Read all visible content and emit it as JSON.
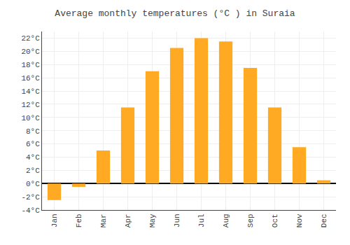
{
  "chart_data": {
    "type": "bar",
    "title": "Average monthly temperatures (°C ) in Suraia",
    "categories": [
      "Jan",
      "Feb",
      "Mar",
      "Apr",
      "May",
      "Jun",
      "Jul",
      "Aug",
      "Sep",
      "Oct",
      "Nov",
      "Dec"
    ],
    "values": [
      -2.5,
      -0.5,
      5.0,
      11.5,
      17.0,
      20.5,
      22.0,
      21.5,
      17.5,
      11.5,
      5.5,
      0.5
    ],
    "color": "#FFAA22",
    "ylim": [
      -4,
      23
    ],
    "yticks": [
      {
        "value": -4,
        "label": "-4°C"
      },
      {
        "value": -2,
        "label": "-2°C"
      },
      {
        "value": 0,
        "label": "0°C"
      },
      {
        "value": 2,
        "label": "2°C"
      },
      {
        "value": 4,
        "label": "4°C"
      },
      {
        "value": 6,
        "label": "6°C"
      },
      {
        "value": 8,
        "label": "8°C"
      },
      {
        "value": 10,
        "label": "10°C"
      },
      {
        "value": 12,
        "label": "12°C"
      },
      {
        "value": 14,
        "label": "14°C"
      },
      {
        "value": 16,
        "label": "16°C"
      },
      {
        "value": 18,
        "label": "18°C"
      },
      {
        "value": 20,
        "label": "20°C"
      },
      {
        "value": 22,
        "label": "22°C"
      }
    ],
    "grid": true
  }
}
